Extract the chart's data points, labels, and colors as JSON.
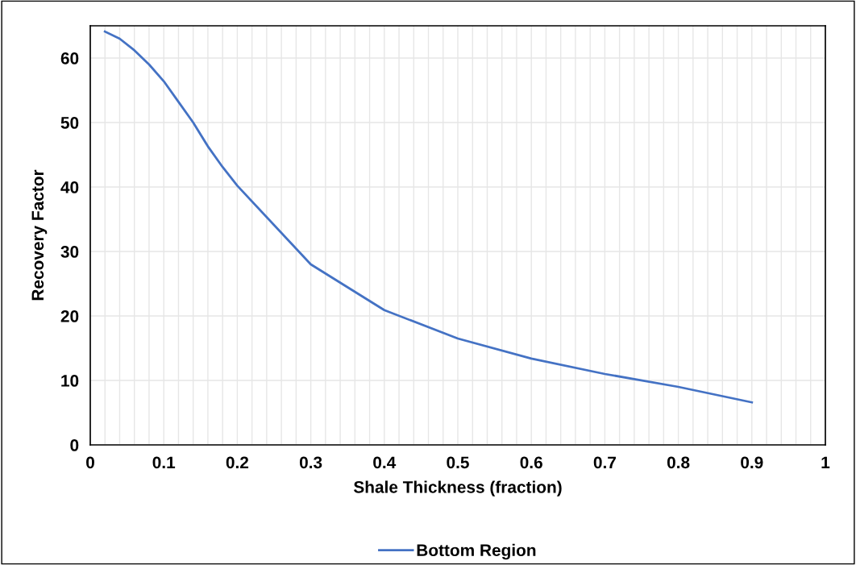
{
  "chart_data": {
    "type": "line",
    "xlabel": "Shale Thickness (fraction)",
    "ylabel": "Recovery Factor",
    "x": [
      0.02,
      0.04,
      0.06,
      0.08,
      0.1,
      0.12,
      0.14,
      0.16,
      0.18,
      0.2,
      0.3,
      0.4,
      0.5,
      0.6,
      0.7,
      0.8,
      0.9
    ],
    "series": [
      {
        "name": "Bottom Region",
        "color": "#4472c4",
        "values": [
          64.1,
          63.0,
          61.2,
          59.0,
          56.4,
          53.2,
          50.0,
          46.3,
          43.1,
          40.2,
          28.0,
          20.9,
          16.5,
          13.4,
          11.0,
          9.0,
          6.6
        ]
      }
    ],
    "xlim": [
      0,
      1
    ],
    "ylim": [
      0,
      65
    ],
    "xticks": [
      0,
      {
        "value": 0.02,
        "label": null
      },
      {
        "value": 0.04,
        "label": null
      },
      {
        "value": 0.06,
        "label": null
      },
      {
        "value": 0.08,
        "label": null
      },
      0.1,
      {
        "value": 0.12,
        "label": null
      },
      {
        "value": 0.14,
        "label": null
      },
      {
        "value": 0.16,
        "label": null
      },
      {
        "value": 0.18,
        "label": null
      },
      0.2,
      {
        "value": 0.22,
        "label": null
      },
      {
        "value": 0.24,
        "label": null
      },
      {
        "value": 0.26,
        "label": null
      },
      {
        "value": 0.28,
        "label": null
      },
      0.3,
      {
        "value": 0.32,
        "label": null
      },
      {
        "value": 0.34,
        "label": null
      },
      {
        "value": 0.36,
        "label": null
      },
      {
        "value": 0.38,
        "label": null
      },
      0.4,
      {
        "value": 0.42,
        "label": null
      },
      {
        "value": 0.44,
        "label": null
      },
      {
        "value": 0.46,
        "label": null
      },
      {
        "value": 0.48,
        "label": null
      },
      0.5,
      {
        "value": 0.52,
        "label": null
      },
      {
        "value": 0.54,
        "label": null
      },
      {
        "value": 0.56,
        "label": null
      },
      {
        "value": 0.58,
        "label": null
      },
      0.6,
      {
        "value": 0.62,
        "label": null
      },
      {
        "value": 0.64,
        "label": null
      },
      {
        "value": 0.66,
        "label": null
      },
      {
        "value": 0.68,
        "label": null
      },
      0.7,
      {
        "value": 0.72,
        "label": null
      },
      {
        "value": 0.74,
        "label": null
      },
      {
        "value": 0.76,
        "label": null
      },
      {
        "value": 0.78,
        "label": null
      },
      0.8,
      {
        "value": 0.82,
        "label": null
      },
      {
        "value": 0.84,
        "label": null
      },
      {
        "value": 0.86,
        "label": null
      },
      {
        "value": 0.88,
        "label": null
      },
      0.9,
      {
        "value": 0.92,
        "label": null
      },
      {
        "value": 0.94,
        "label": null
      },
      {
        "value": 0.96,
        "label": null
      },
      {
        "value": 0.98,
        "label": null
      },
      1
    ],
    "yticks": [
      0,
      10,
      20,
      30,
      40,
      50,
      60
    ],
    "grid": true,
    "legend": "bottom",
    "marker": "none",
    "line_style": "solid"
  }
}
